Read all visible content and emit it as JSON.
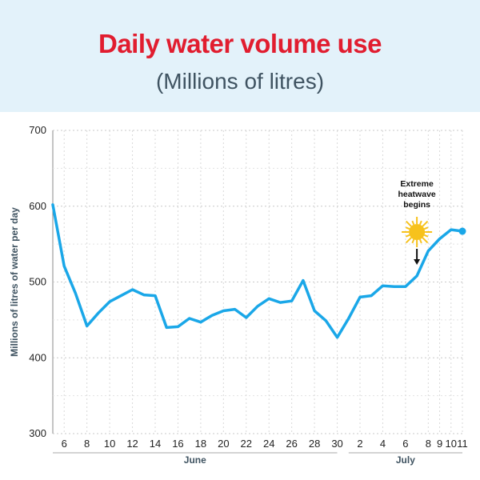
{
  "header": {
    "title": "Daily water volume use",
    "subtitle": "(Millions of litres)"
  },
  "colors": {
    "header_bg": "#e3f2fa",
    "title": "#e11d2f",
    "line": "#1aa7e8",
    "grid": "#c9c9c9",
    "sun": "#f7c21c"
  },
  "chart_data": {
    "type": "line",
    "ylabel": "Millions of litres of water per day",
    "ylim": [
      300,
      700
    ],
    "yticks": [
      300,
      400,
      500,
      600,
      700
    ],
    "x": [
      "Jun 5",
      "Jun 6",
      "Jun 7",
      "Jun 8",
      "Jun 9",
      "Jun 10",
      "Jun 11",
      "Jun 12",
      "Jun 13",
      "Jun 14",
      "Jun 15",
      "Jun 16",
      "Jun 17",
      "Jun 18",
      "Jun 19",
      "Jun 20",
      "Jun 21",
      "Jun 22",
      "Jun 23",
      "Jun 24",
      "Jun 25",
      "Jun 26",
      "Jun 27",
      "Jun 28",
      "Jun 29",
      "Jun 30",
      "Jul 1",
      "Jul 2",
      "Jul 3",
      "Jul 4",
      "Jul 5",
      "Jul 6",
      "Jul 7",
      "Jul 8",
      "Jul 9",
      "Jul 10",
      "Jul 11"
    ],
    "values": [
      602,
      521,
      485,
      442,
      459,
      474,
      482,
      490,
      483,
      482,
      440,
      441,
      452,
      447,
      456,
      462,
      464,
      453,
      468,
      478,
      473,
      475,
      502,
      462,
      449,
      427,
      452,
      480,
      482,
      495,
      494,
      494,
      508,
      541,
      557,
      569,
      567
    ],
    "xtick_labels": [
      "6",
      "8",
      "10",
      "12",
      "14",
      "16",
      "18",
      "20",
      "22",
      "24",
      "26",
      "28",
      "30",
      "2",
      "4",
      "6",
      "8",
      "9",
      "10",
      "11"
    ],
    "xtick_index": [
      1,
      3,
      5,
      7,
      9,
      11,
      13,
      15,
      17,
      19,
      21,
      23,
      25,
      27,
      29,
      31,
      33,
      34,
      35,
      36
    ],
    "months": [
      {
        "label": "June",
        "from": 0,
        "to": 25
      },
      {
        "label": "July",
        "from": 26,
        "to": 36
      }
    ],
    "annotation": {
      "lines": [
        "Extreme",
        "heatwave",
        "begins"
      ],
      "at_index": 32
    },
    "grid": true
  }
}
